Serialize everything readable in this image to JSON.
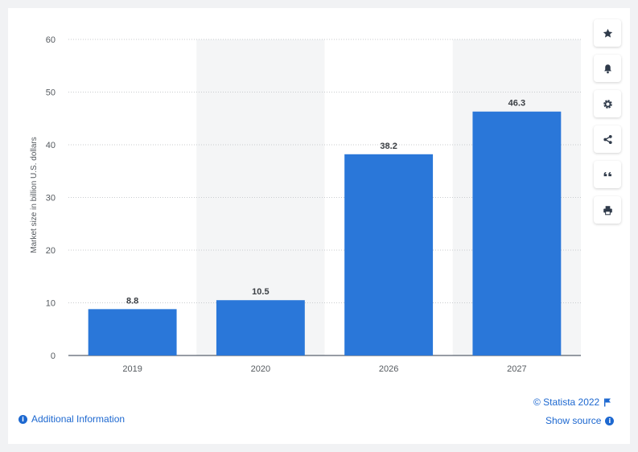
{
  "colors": {
    "bar": "#2a77d9",
    "accent": "#1d68d0",
    "band": "#f4f5f6",
    "grid": "#c8cbce"
  },
  "toolbar": {
    "buttons": [
      {
        "name": "favorite-star-icon"
      },
      {
        "name": "notification-bell-icon"
      },
      {
        "name": "settings-gear-icon"
      },
      {
        "name": "share-icon"
      },
      {
        "name": "cite-quote-icon"
      },
      {
        "name": "print-icon"
      }
    ]
  },
  "footer": {
    "copyright": "© Statista 2022",
    "show_source": "Show source",
    "additional_info": "Additional Information"
  },
  "chart_data": {
    "type": "bar",
    "categories": [
      "2019",
      "2020",
      "2026",
      "2027"
    ],
    "values": [
      8.8,
      10.5,
      38.2,
      46.3
    ],
    "value_labels": [
      "8.8",
      "10.5",
      "38.2",
      "46.3"
    ],
    "xlabel": "",
    "ylabel": "Market size in billion U.S. dollars",
    "ylim": [
      0,
      60
    ],
    "yticks": [
      0,
      10,
      20,
      30,
      40,
      50,
      60
    ],
    "grid": true,
    "alternating_bands": true
  }
}
